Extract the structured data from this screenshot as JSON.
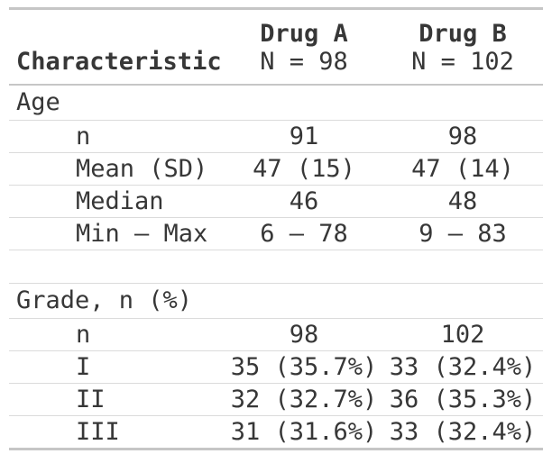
{
  "colors": {
    "background": "#ffffff",
    "text": "#373737",
    "border_strong": "#c6c6c6",
    "border_light": "#dbdbdb"
  },
  "header": {
    "characteristic_label": "Characteristic",
    "drug_a": {
      "name": "Drug A",
      "n_label": "N = 98"
    },
    "drug_b": {
      "name": "Drug B",
      "n_label": "N = 102"
    }
  },
  "rows": [
    {
      "type": "section",
      "label": "Age"
    },
    {
      "type": "sub",
      "label": "n",
      "drug_a": "91",
      "drug_b": "98"
    },
    {
      "type": "sub",
      "label": "Mean (SD)",
      "drug_a": "47 (15)",
      "drug_b": "47 (14)"
    },
    {
      "type": "sub",
      "label": "Median",
      "drug_a": "46",
      "drug_b": "48"
    },
    {
      "type": "sub",
      "label": "Min – Max",
      "drug_a": "6 – 78",
      "drug_b": "9 – 83"
    },
    {
      "type": "spacer"
    },
    {
      "type": "section",
      "label": "Grade, n (%)"
    },
    {
      "type": "sub",
      "label": "n",
      "drug_a": "98",
      "drug_b": "102"
    },
    {
      "type": "sub",
      "label": "I",
      "drug_a": "35 (35.7%)",
      "drug_b": "33 (32.4%)"
    },
    {
      "type": "sub",
      "label": "II",
      "drug_a": "32 (32.7%)",
      "drug_b": "36 (35.3%)"
    },
    {
      "type": "sub",
      "label": "III",
      "drug_a": "31 (31.6%)",
      "drug_b": "33 (32.4%)"
    }
  ]
}
